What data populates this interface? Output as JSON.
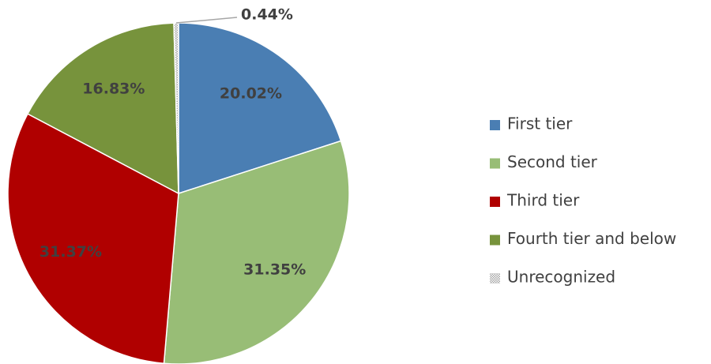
{
  "chart_data": {
    "type": "pie",
    "categories": [
      "First tier",
      "Second tier",
      "Third tier",
      "Fourth tier and below",
      "Unrecognized"
    ],
    "values": [
      20.02,
      31.35,
      31.37,
      16.83,
      0.44
    ],
    "value_labels": [
      "20.02%",
      "31.35%",
      "31.37%",
      "16.83%",
      "0.44%"
    ],
    "colors": [
      "#4a7eb3",
      "#98bd76",
      "#b00000",
      "#77933c",
      "#a6a6a6"
    ]
  }
}
